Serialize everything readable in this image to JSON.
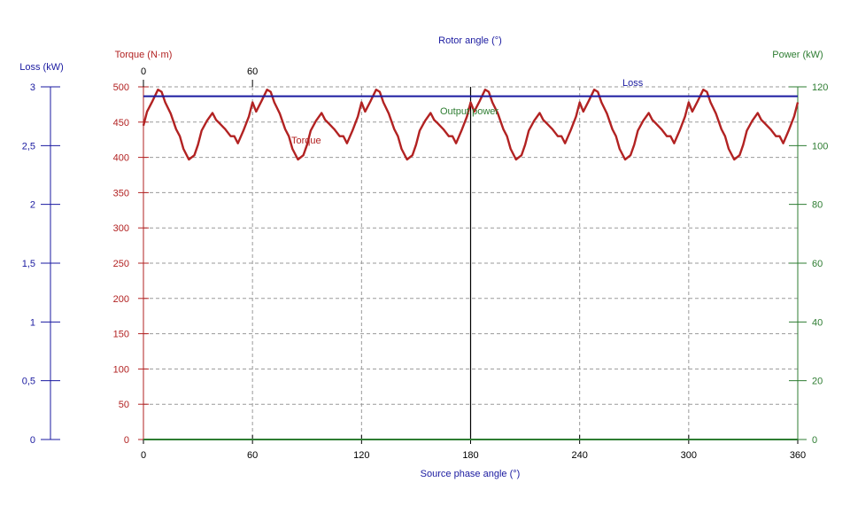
{
  "chart_data": {
    "type": "line",
    "colors": {
      "torque": "#b22222",
      "loss": "#1a1aa0",
      "power": "#2e7d32",
      "grid": "#9a9a9a",
      "marker": "#000000"
    },
    "top_axis": {
      "title": "Rotor angle (°)",
      "ticks": [
        {
          "value": 0,
          "label": "0"
        },
        {
          "value": 60,
          "label": "60"
        }
      ]
    },
    "x_axis": {
      "title": "Source phase angle (°)",
      "range": [
        0,
        360
      ],
      "ticks": [
        "0",
        "60",
        "120",
        "180",
        "240",
        "300",
        "360"
      ],
      "grid": true
    },
    "y_axis_loss": {
      "title": "Loss (kW)",
      "range": [
        0,
        3
      ],
      "ticks": [
        "0",
        "0,5",
        "1",
        "1,5",
        "2",
        "2,5",
        "3"
      ]
    },
    "y_axis_torque": {
      "title": "Torque (N·m)",
      "range": [
        0,
        500
      ],
      "ticks": [
        "0",
        "50",
        "100",
        "150",
        "200",
        "250",
        "300",
        "350",
        "400",
        "450",
        "500"
      ],
      "grid": true
    },
    "y_axis_power": {
      "title": "Power (kW)",
      "range": [
        0,
        120
      ],
      "ticks": [
        "0",
        "20",
        "40",
        "60",
        "80",
        "100",
        "120"
      ]
    },
    "marker_x": 180,
    "series": [
      {
        "name": "Torque",
        "axis": "torque",
        "x": [
          0,
          2,
          5,
          8,
          10,
          12,
          15,
          18,
          20,
          22,
          25,
          28,
          30,
          32,
          35,
          38,
          40,
          42,
          45,
          48,
          50,
          52,
          55,
          58,
          60
        ],
        "y": [
          445,
          465,
          480,
          496,
          493,
          478,
          462,
          440,
          430,
          412,
          397,
          403,
          418,
          438,
          452,
          463,
          453,
          448,
          440,
          430,
          430,
          420,
          438,
          458,
          478
        ]
      },
      {
        "name": "Loss",
        "axis": "loss",
        "x": [
          0,
          360
        ],
        "y": [
          2.92,
          2.92
        ]
      },
      {
        "name": "Output power",
        "axis": "power",
        "x": [
          0,
          360
        ],
        "y": [
          0,
          0
        ]
      }
    ],
    "annotations": [
      {
        "text": "Loss",
        "series": "Loss"
      },
      {
        "text": "Output power",
        "series": "Output power"
      },
      {
        "text": "Torque",
        "series": "Torque"
      }
    ]
  }
}
